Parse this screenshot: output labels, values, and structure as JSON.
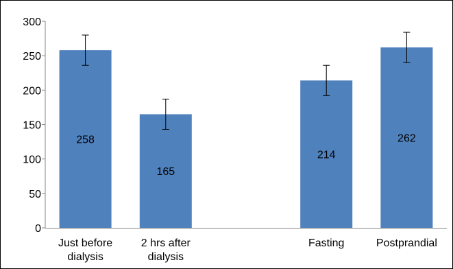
{
  "chart_data": {
    "type": "bar",
    "categories": [
      [
        "Just before",
        "dialysis"
      ],
      [
        "2 hrs after",
        "dialysis"
      ],
      [
        "",
        ""
      ],
      [
        "Fasting"
      ],
      [
        "Postprandial"
      ]
    ],
    "values": [
      258,
      165,
      null,
      214,
      262
    ],
    "data_labels": [
      "258",
      "165",
      "",
      "214",
      "262"
    ],
    "error": [
      22,
      22,
      null,
      22,
      22
    ],
    "ylim": [
      0,
      300
    ],
    "yticks": [
      0,
      50,
      100,
      150,
      200,
      250,
      300
    ],
    "grid": false,
    "title": "",
    "xlabel": "",
    "ylabel": "",
    "colors": {
      "bar": "#4f81bd",
      "axis": "#868686",
      "error": "#000000",
      "text": "#000000"
    }
  }
}
